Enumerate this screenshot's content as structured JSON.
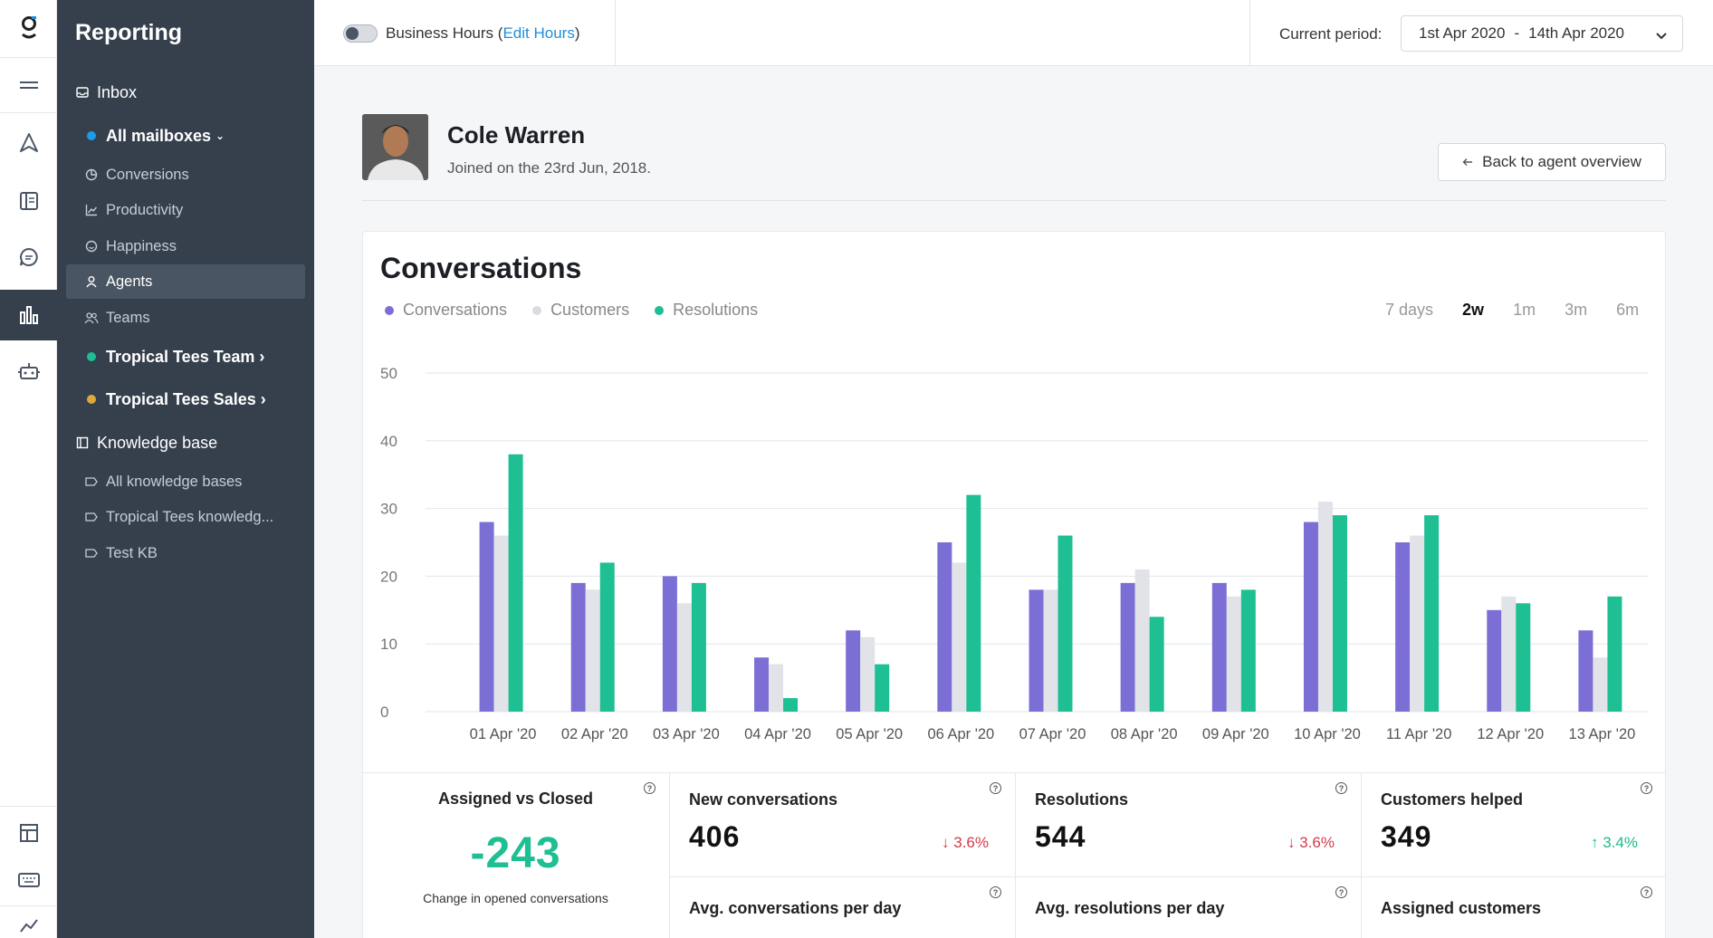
{
  "sidebar": {
    "title": "Reporting",
    "inbox_label": "Inbox",
    "all_mailboxes_label": "All mailboxes",
    "items": [
      {
        "label": "Conversions"
      },
      {
        "label": "Productivity"
      },
      {
        "label": "Happiness"
      },
      {
        "label": "Agents"
      },
      {
        "label": "Teams"
      }
    ],
    "team_1": "Tropical Tees Team",
    "team_2": "Tropical Tees Sales",
    "kb_label": "Knowledge base",
    "kb_items": [
      {
        "label": "All knowledge bases"
      },
      {
        "label": "Tropical Tees knowledg..."
      },
      {
        "label": "Test KB"
      }
    ]
  },
  "topbar": {
    "business_hours_label": "Business Hours",
    "edit_hours_label": "Edit Hours",
    "current_period_label": "Current period:",
    "period_start": "1st Apr 2020",
    "period_sep": "-",
    "period_end": "14th Apr 2020"
  },
  "agent": {
    "name": "Cole Warren",
    "joined": "Joined on the 23rd Jun, 2018.",
    "back_label": "Back to agent overview"
  },
  "card": {
    "title": "Conversations",
    "ranges": [
      "7 days",
      "2w",
      "1m",
      "3m",
      "6m"
    ],
    "selected_range": "2w"
  },
  "colors": {
    "conversations": "#7b6fd6",
    "customers": "#e1e3e8",
    "resolutions": "#1dbf93"
  },
  "chart_data": {
    "type": "bar",
    "categories": [
      "01 Apr '20",
      "02 Apr '20",
      "03 Apr '20",
      "04 Apr '20",
      "05 Apr '20",
      "06 Apr '20",
      "07 Apr '20",
      "08 Apr '20",
      "09 Apr '20",
      "10 Apr '20",
      "11 Apr '20",
      "12 Apr '20",
      "13 Apr '20"
    ],
    "series": [
      {
        "name": "Conversations",
        "values": [
          28,
          19,
          20,
          8,
          12,
          25,
          18,
          19,
          19,
          28,
          25,
          15,
          12
        ]
      },
      {
        "name": "Customers",
        "values": [
          26,
          18,
          16,
          7,
          11,
          22,
          18,
          21,
          17,
          31,
          26,
          17,
          8
        ]
      },
      {
        "name": "Resolutions",
        "values": [
          38,
          22,
          19,
          2,
          7,
          32,
          26,
          14,
          18,
          29,
          29,
          16,
          17
        ]
      }
    ],
    "yticks": [
      0,
      10,
      20,
      30,
      40,
      50
    ],
    "ylim": [
      0,
      50
    ],
    "title": "",
    "xlabel": "",
    "ylabel": ""
  },
  "stats": {
    "assigned_vs_closed": {
      "label": "Assigned vs Closed",
      "value": "-243",
      "caption": "Change in opened conversations"
    },
    "new_conversations": {
      "label": "New conversations",
      "value": "406",
      "delta": "3.6%"
    },
    "resolutions": {
      "label": "Resolutions",
      "value": "544",
      "delta": "3.6%"
    },
    "customers_helped": {
      "label": "Customers helped",
      "value": "349",
      "delta": "3.4%"
    },
    "avg_conversations": {
      "label": "Avg. conversations per day"
    },
    "avg_resolutions": {
      "label": "Avg. resolutions per day"
    },
    "assigned_customers": {
      "label": "Assigned customers"
    }
  }
}
